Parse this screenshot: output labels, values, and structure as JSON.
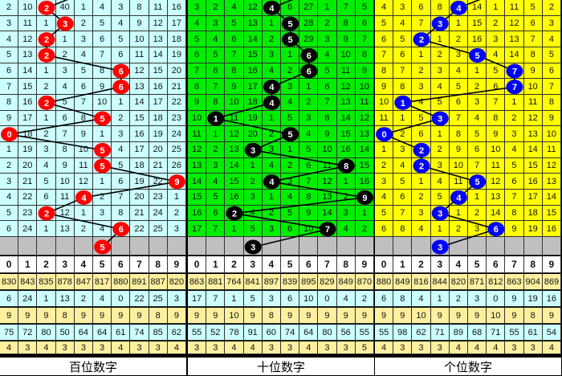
{
  "colors": {
    "panel_bg": [
      "#ccffff",
      "#00ee00",
      "#ffff00"
    ],
    "ball": [
      "#ff0000",
      "#000000",
      "#0000ff"
    ],
    "missing_row": "#c0c0c0",
    "stat_yellow": "#fff0a0",
    "stat_cyan": "#ccffff"
  },
  "panels": [
    {
      "title": "百位数字",
      "digits": [
        "0",
        "1",
        "2",
        "3",
        "4",
        "5",
        "6",
        "7",
        "8",
        "9"
      ],
      "rows": [
        [
          "2",
          "10",
          "2",
          "40",
          "1",
          "4",
          "3",
          "8",
          "11",
          "16"
        ],
        [
          "3",
          "11",
          "1",
          "3",
          "2",
          "5",
          "4",
          "9",
          "12",
          "17"
        ],
        [
          "4",
          "12",
          "2",
          "1",
          "3",
          "6",
          "5",
          "10",
          "13",
          "18"
        ],
        [
          "5",
          "13",
          "2",
          "2",
          "4",
          "7",
          "6",
          "11",
          "14",
          "19"
        ],
        [
          "6",
          "14",
          "1",
          "3",
          "5",
          "8",
          "6",
          "12",
          "15",
          "20"
        ],
        [
          "7",
          "15",
          "2",
          "4",
          "6",
          "9",
          "6",
          "13",
          "16",
          "21"
        ],
        [
          "8",
          "16",
          "2",
          "5",
          "7",
          "10",
          "1",
          "14",
          "17",
          "22"
        ],
        [
          "9",
          "17",
          "1",
          "6",
          "8",
          "5",
          "2",
          "15",
          "18",
          "23"
        ],
        [
          "0",
          "18",
          "2",
          "7",
          "9",
          "1",
          "3",
          "16",
          "19",
          "24"
        ],
        [
          "1",
          "19",
          "3",
          "8",
          "10",
          "5",
          "4",
          "17",
          "20",
          "25"
        ],
        [
          "2",
          "20",
          "4",
          "9",
          "11",
          "5",
          "5",
          "18",
          "21",
          "26"
        ],
        [
          "3",
          "21",
          "5",
          "10",
          "12",
          "1",
          "6",
          "19",
          "22",
          "9"
        ],
        [
          "4",
          "22",
          "6",
          "11",
          "4",
          "2",
          "7",
          "20",
          "23",
          "1"
        ],
        [
          "5",
          "23",
          "2",
          "12",
          "1",
          "3",
          "8",
          "21",
          "24",
          "2"
        ],
        [
          "6",
          "24",
          "1",
          "13",
          "2",
          "4",
          "6",
          "22",
          "25",
          "3"
        ]
      ],
      "hits": [
        2,
        3,
        2,
        2,
        6,
        6,
        2,
        5,
        0,
        5,
        5,
        9,
        4,
        2,
        6
      ],
      "next_hit": 5,
      "stats": [
        [
          "830",
          "843",
          "835",
          "878",
          "847",
          "817",
          "880",
          "891",
          "887",
          "820"
        ],
        [
          "6",
          "24",
          "1",
          "13",
          "2",
          "4",
          "0",
          "22",
          "25",
          "3"
        ],
        [
          "9",
          "9",
          "9",
          "8",
          "9",
          "9",
          "9",
          "9",
          "8",
          "9"
        ],
        [
          "75",
          "72",
          "80",
          "50",
          "64",
          "64",
          "61",
          "74",
          "85",
          "62"
        ],
        [
          "4",
          "3",
          "4",
          "3",
          "3",
          "3",
          "4",
          "3",
          "3",
          "4"
        ]
      ]
    },
    {
      "title": "十位数字",
      "digits": [
        "0",
        "1",
        "2",
        "3",
        "4",
        "5",
        "6",
        "7",
        "8",
        "9"
      ],
      "rows": [
        [
          "3",
          "2",
          "4",
          "12",
          "4",
          "6",
          "27",
          "1",
          "7",
          "5"
        ],
        [
          "4",
          "3",
          "5",
          "13",
          "1",
          "5",
          "28",
          "2",
          "8",
          "6"
        ],
        [
          "5",
          "4",
          "6",
          "14",
          "2",
          "5",
          "29",
          "3",
          "9",
          "7"
        ],
        [
          "6",
          "5",
          "7",
          "15",
          "3",
          "1",
          "6",
          "4",
          "10",
          "8"
        ],
        [
          "7",
          "6",
          "8",
          "16",
          "4",
          "2",
          "6",
          "5",
          "11",
          "9"
        ],
        [
          "8",
          "7",
          "9",
          "17",
          "4",
          "3",
          "1",
          "6",
          "12",
          "10"
        ],
        [
          "9",
          "8",
          "10",
          "18",
          "4",
          "4",
          "2",
          "7",
          "13",
          "11"
        ],
        [
          "10",
          "1",
          "11",
          "19",
          "1",
          "5",
          "3",
          "8",
          "14",
          "12"
        ],
        [
          "11",
          "1",
          "12",
          "20",
          "2",
          "5",
          "4",
          "9",
          "15",
          "13"
        ],
        [
          "12",
          "2",
          "13",
          "3",
          "3",
          "1",
          "5",
          "10",
          "16",
          "14"
        ],
        [
          "13",
          "3",
          "14",
          "1",
          "4",
          "2",
          "6",
          "11",
          "8",
          "15"
        ],
        [
          "14",
          "4",
          "15",
          "2",
          "4",
          "3",
          "7",
          "12",
          "1",
          "16"
        ],
        [
          "15",
          "5",
          "16",
          "3",
          "1",
          "4",
          "8",
          "13",
          "2",
          "9"
        ],
        [
          "16",
          "6",
          "2",
          "4",
          "2",
          "5",
          "9",
          "14",
          "3",
          "1"
        ],
        [
          "17",
          "7",
          "1",
          "5",
          "3",
          "6",
          "10",
          "7",
          "4",
          "2"
        ]
      ],
      "hits": [
        4,
        5,
        5,
        6,
        6,
        4,
        4,
        1,
        5,
        3,
        8,
        4,
        9,
        2,
        7
      ],
      "next_hit": 3,
      "stats": [
        [
          "863",
          "881",
          "764",
          "841",
          "897",
          "839",
          "895",
          "829",
          "849",
          "870"
        ],
        [
          "17",
          "7",
          "1",
          "5",
          "3",
          "6",
          "10",
          "0",
          "4",
          "2"
        ],
        [
          "9",
          "9",
          "10",
          "9",
          "8",
          "9",
          "9",
          "9",
          "9",
          "9"
        ],
        [
          "55",
          "52",
          "78",
          "91",
          "60",
          "74",
          "64",
          "80",
          "56",
          "55"
        ],
        [
          "3",
          "3",
          "4",
          "4",
          "3",
          "3",
          "4",
          "3",
          "3",
          "5"
        ]
      ]
    },
    {
      "title": "个位数字",
      "digits": [
        "0",
        "1",
        "2",
        "3",
        "4",
        "5",
        "6",
        "7",
        "8",
        "9"
      ],
      "rows": [
        [
          "4",
          "3",
          "6",
          "8",
          "4",
          "14",
          "1",
          "11",
          "5",
          "2"
        ],
        [
          "5",
          "4",
          "7",
          "3",
          "1",
          "15",
          "2",
          "12",
          "6",
          "3"
        ],
        [
          "6",
          "5",
          "2",
          "1",
          "2",
          "16",
          "3",
          "13",
          "7",
          "4"
        ],
        [
          "7",
          "6",
          "1",
          "2",
          "3",
          "5",
          "4",
          "14",
          "8",
          "5"
        ],
        [
          "8",
          "7",
          "2",
          "3",
          "4",
          "1",
          "5",
          "7",
          "9",
          "6"
        ],
        [
          "9",
          "8",
          "3",
          "4",
          "5",
          "2",
          "6",
          "7",
          "10",
          "7"
        ],
        [
          "10",
          "1",
          "4",
          "5",
          "6",
          "3",
          "7",
          "1",
          "11",
          "8"
        ],
        [
          "11",
          "1",
          "5",
          "3",
          "7",
          "4",
          "8",
          "2",
          "12",
          "9"
        ],
        [
          "0",
          "2",
          "6",
          "1",
          "8",
          "5",
          "9",
          "3",
          "13",
          "10"
        ],
        [
          "1",
          "3",
          "2",
          "2",
          "9",
          "6",
          "10",
          "4",
          "14",
          "11"
        ],
        [
          "2",
          "4",
          "2",
          "3",
          "10",
          "7",
          "11",
          "5",
          "15",
          "12"
        ],
        [
          "3",
          "5",
          "1",
          "4",
          "11",
          "5",
          "12",
          "6",
          "16",
          "13"
        ],
        [
          "4",
          "6",
          "2",
          "5",
          "4",
          "1",
          "13",
          "7",
          "17",
          "14"
        ],
        [
          "5",
          "7",
          "3",
          "3",
          "1",
          "2",
          "14",
          "8",
          "18",
          "15"
        ],
        [
          "6",
          "8",
          "4",
          "1",
          "2",
          "3",
          "6",
          "9",
          "19",
          "16"
        ]
      ],
      "hits": [
        4,
        3,
        2,
        5,
        7,
        7,
        1,
        3,
        0,
        2,
        2,
        5,
        4,
        3,
        6
      ],
      "next_hit": 3,
      "stats": [
        [
          "880",
          "849",
          "816",
          "844",
          "820",
          "871",
          "812",
          "863",
          "904",
          "869"
        ],
        [
          "6",
          "8",
          "4",
          "1",
          "2",
          "3",
          "0",
          "9",
          "19",
          "16"
        ],
        [
          "9",
          "9",
          "10",
          "9",
          "9",
          "9",
          "10",
          "9",
          "8",
          "9"
        ],
        [
          "55",
          "98",
          "62",
          "71",
          "89",
          "68",
          "71",
          "55",
          "61",
          "54"
        ],
        [
          "4",
          "3",
          "3",
          "3",
          "4",
          "4",
          "4",
          "3",
          "3",
          "4"
        ]
      ]
    }
  ]
}
